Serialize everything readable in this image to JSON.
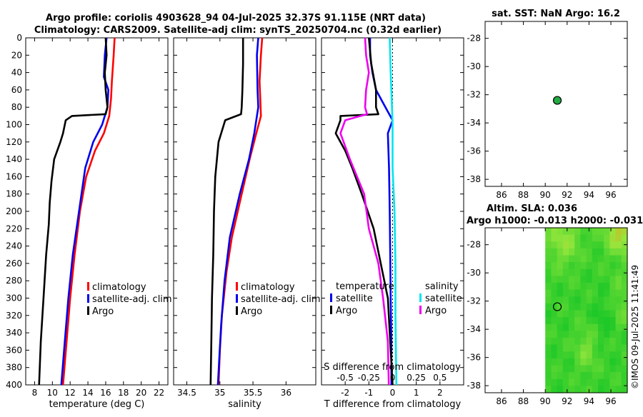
{
  "title_line1": "Argo profile: coriolis 4903628_94 04-Jul-2025 32.37S 91.115E (NRT data)",
  "title_line2": "Climatology: CARS2009. Satellite-adj clim: synTS_20250704.nc (0.32d earlier)",
  "colors": {
    "climatology": "#ff0000",
    "satellite": "#0000ee",
    "argo": "#000000",
    "sal_sat": "#00e5ee",
    "sal_argo": "#ee00ee",
    "sst_marker": "#22aa44"
  },
  "chart_data": [
    {
      "id": "temperature",
      "type": "line",
      "xlabel": "temperature (deg C)",
      "ylabel": "",
      "xlim": [
        7,
        23
      ],
      "ylim": [
        400,
        0
      ],
      "xticks": [
        8,
        10,
        12,
        14,
        16,
        18,
        20,
        22
      ],
      "xtick_labels": [
        "8",
        "10",
        "12",
        "14",
        "16",
        "18",
        "20",
        "22"
      ],
      "yticks": [
        0,
        20,
        40,
        60,
        80,
        100,
        120,
        140,
        160,
        180,
        200,
        220,
        240,
        260,
        280,
        300,
        320,
        340,
        360,
        380,
        400
      ],
      "ytick_labels": [
        "0",
        "20",
        "40",
        "60",
        "80",
        "100",
        "120",
        "140",
        "160",
        "180",
        "200",
        "220",
        "240",
        "260",
        "280",
        "300",
        "320",
        "340",
        "360",
        "380",
        "400"
      ],
      "legend": [
        "climatology",
        "satellite-adj. clim",
        "Argo"
      ],
      "series": [
        {
          "name": "climatology",
          "points": [
            [
              17.0,
              0
            ],
            [
              16.9,
              20
            ],
            [
              16.7,
              50
            ],
            [
              16.6,
              70
            ],
            [
              16.4,
              90
            ],
            [
              15.8,
              110
            ],
            [
              14.8,
              130
            ],
            [
              13.8,
              160
            ],
            [
              13.1,
              200
            ],
            [
              12.5,
              250
            ],
            [
              12.0,
              300
            ],
            [
              11.6,
              350
            ],
            [
              11.2,
              400
            ]
          ]
        },
        {
          "name": "satellite-adj. clim",
          "points": [
            [
              16.1,
              0
            ],
            [
              15.9,
              20
            ],
            [
              15.8,
              45
            ],
            [
              16.3,
              60
            ],
            [
              16.2,
              80
            ],
            [
              15.6,
              100
            ],
            [
              14.6,
              120
            ],
            [
              13.7,
              150
            ],
            [
              13.0,
              200
            ],
            [
              12.3,
              250
            ],
            [
              11.8,
              300
            ],
            [
              11.4,
              350
            ],
            [
              11.0,
              400
            ]
          ]
        },
        {
          "name": "Argo",
          "points": [
            [
              16.0,
              0
            ],
            [
              16.1,
              20
            ],
            [
              15.9,
              40
            ],
            [
              16.0,
              60
            ],
            [
              16.2,
              80
            ],
            [
              16.0,
              88
            ],
            [
              12.2,
              90
            ],
            [
              11.5,
              95
            ],
            [
              11.2,
              110
            ],
            [
              10.9,
              120
            ],
            [
              10.2,
              140
            ],
            [
              9.9,
              165
            ],
            [
              9.7,
              190
            ],
            [
              9.6,
              215
            ],
            [
              9.3,
              250
            ],
            [
              9.0,
              300
            ],
            [
              8.7,
              350
            ],
            [
              8.5,
              400
            ]
          ]
        }
      ]
    },
    {
      "id": "salinity",
      "type": "line",
      "xlabel": "salinity",
      "xlim": [
        34.3,
        36.45
      ],
      "ylim": [
        400,
        0
      ],
      "xticks": [
        34.5,
        35,
        35.5,
        36
      ],
      "xtick_labels": [
        "34.5",
        "35",
        "35.5",
        "36"
      ],
      "legend": [
        "climatology",
        "satellite-adj. clim",
        "Argo"
      ],
      "series": [
        {
          "name": "climatology",
          "points": [
            [
              35.64,
              0
            ],
            [
              35.62,
              20
            ],
            [
              35.6,
              50
            ],
            [
              35.61,
              70
            ],
            [
              35.62,
              90
            ],
            [
              35.55,
              110
            ],
            [
              35.45,
              140
            ],
            [
              35.33,
              180
            ],
            [
              35.18,
              230
            ],
            [
              35.1,
              270
            ],
            [
              35.03,
              320
            ],
            [
              35.0,
              360
            ],
            [
              34.98,
              400
            ]
          ]
        },
        {
          "name": "satellite-adj. clim",
          "points": [
            [
              35.58,
              0
            ],
            [
              35.56,
              20
            ],
            [
              35.57,
              60
            ],
            [
              35.58,
              80
            ],
            [
              35.52,
              110
            ],
            [
              35.44,
              140
            ],
            [
              35.3,
              180
            ],
            [
              35.15,
              230
            ],
            [
              35.07,
              280
            ],
            [
              35.02,
              330
            ],
            [
              34.99,
              370
            ],
            [
              34.97,
              400
            ]
          ]
        },
        {
          "name": "Argo",
          "points": [
            [
              35.35,
              0
            ],
            [
              35.35,
              30
            ],
            [
              35.34,
              60
            ],
            [
              35.33,
              80
            ],
            [
              35.32,
              88
            ],
            [
              35.08,
              95
            ],
            [
              34.98,
              120
            ],
            [
              34.93,
              160
            ],
            [
              34.91,
              200
            ],
            [
              34.9,
              250
            ],
            [
              34.88,
              300
            ],
            [
              34.87,
              350
            ],
            [
              34.86,
              400
            ]
          ]
        }
      ]
    },
    {
      "id": "difference",
      "type": "line",
      "xlabel": "T difference from climatology",
      "xlabel_top": "S difference from climatology",
      "xlim": [
        -3,
        3
      ],
      "ylim": [
        400,
        0
      ],
      "xticks": [
        -2,
        -1,
        0,
        1,
        2
      ],
      "xtick_labels": [
        "-2",
        "-1",
        "0",
        "1",
        "2"
      ],
      "stick_labels": [
        "-0.5",
        "-0.25",
        "0",
        "0.25",
        "0.5"
      ],
      "legend_header_left": "temperature",
      "legend_header_right": "salinity",
      "legend": [
        "satellite",
        "Argo",
        "satellite",
        "Argo"
      ],
      "series": [
        {
          "name": "T satellite",
          "points": [
            [
              -0.95,
              0
            ],
            [
              -0.95,
              20
            ],
            [
              -0.85,
              40
            ],
            [
              -0.7,
              60
            ],
            [
              -0.3,
              80
            ],
            [
              0.0,
              95
            ],
            [
              -0.2,
              110
            ],
            [
              -0.15,
              150
            ],
            [
              -0.12,
              200
            ],
            [
              -0.1,
              250
            ],
            [
              -0.08,
              300
            ],
            [
              -0.05,
              350
            ],
            [
              -0.05,
              400
            ]
          ]
        },
        {
          "name": "T Argo",
          "points": [
            [
              -1.0,
              0
            ],
            [
              -0.9,
              30
            ],
            [
              -0.7,
              60
            ],
            [
              -0.7,
              80
            ],
            [
              -0.6,
              88
            ],
            [
              -2.2,
              90
            ],
            [
              -2.2,
              95
            ],
            [
              -2.4,
              110
            ],
            [
              -2.0,
              130
            ],
            [
              -1.7,
              150
            ],
            [
              -1.3,
              180
            ],
            [
              -0.8,
              220
            ],
            [
              -0.5,
              260
            ],
            [
              -0.2,
              300
            ],
            [
              -0.1,
              350
            ],
            [
              0.0,
              400
            ]
          ]
        },
        {
          "name": "S satellite",
          "points": [
            [
              -0.03,
              0
            ],
            [
              -0.02,
              40
            ],
            [
              -0.01,
              70
            ],
            [
              0.0,
              100
            ],
            [
              0.0,
              150
            ],
            [
              0.02,
              200
            ],
            [
              0.03,
              260
            ],
            [
              0.03,
              320
            ],
            [
              0.04,
              400
            ]
          ]
        },
        {
          "name": "S Argo",
          "points": [
            [
              -0.29,
              0
            ],
            [
              -0.28,
              20
            ],
            [
              -0.25,
              40
            ],
            [
              -0.28,
              60
            ],
            [
              -0.29,
              80
            ],
            [
              -0.27,
              88
            ],
            [
              -0.5,
              95
            ],
            [
              -0.55,
              110
            ],
            [
              -0.45,
              140
            ],
            [
              -0.3,
              180
            ],
            [
              -0.25,
              220
            ],
            [
              -0.15,
              260
            ],
            [
              -0.1,
              300
            ],
            [
              -0.05,
              350
            ],
            [
              -0.04,
              400
            ]
          ]
        }
      ]
    },
    {
      "id": "sst_map",
      "type": "scatter",
      "title": "sat. SST: NaN Argo: 16.2",
      "xlim": [
        84.5,
        97.5
      ],
      "ylim": [
        -38.5,
        -26.8
      ],
      "xticks": [
        86,
        88,
        90,
        92,
        94,
        96
      ],
      "xtick_labels": [
        "86",
        "88",
        "90",
        "92",
        "94",
        "96"
      ],
      "yticks": [
        -28,
        -30,
        -32,
        -34,
        -36,
        -38
      ],
      "ytick_labels": [
        "-28",
        "-30",
        "-32",
        "-34",
        "-36",
        "-38"
      ],
      "points": [
        [
          91.1,
          -32.4
        ]
      ]
    },
    {
      "id": "sla_map",
      "type": "heatmap",
      "title_line1": "Altim. SLA: 0.036",
      "title_line2": "Argo h1000: -0.013 h2000: -0.031",
      "xlim": [
        84.5,
        97.5
      ],
      "ylim": [
        -38.5,
        -26.8
      ],
      "data_lon_range": [
        90,
        97.5
      ],
      "xticks": [
        86,
        88,
        90,
        92,
        94,
        96
      ],
      "xtick_labels": [
        "86",
        "88",
        "90",
        "92",
        "94",
        "96"
      ],
      "yticks": [
        -28,
        -30,
        -32,
        -34,
        -36,
        -38
      ],
      "ytick_labels": [
        "-28",
        "-30",
        "-32",
        "-34",
        "-36",
        "-38"
      ],
      "points": [
        [
          91.1,
          -32.4
        ]
      ]
    }
  ],
  "credit": "©IMOS 09-Jul-2025 11:41:49"
}
